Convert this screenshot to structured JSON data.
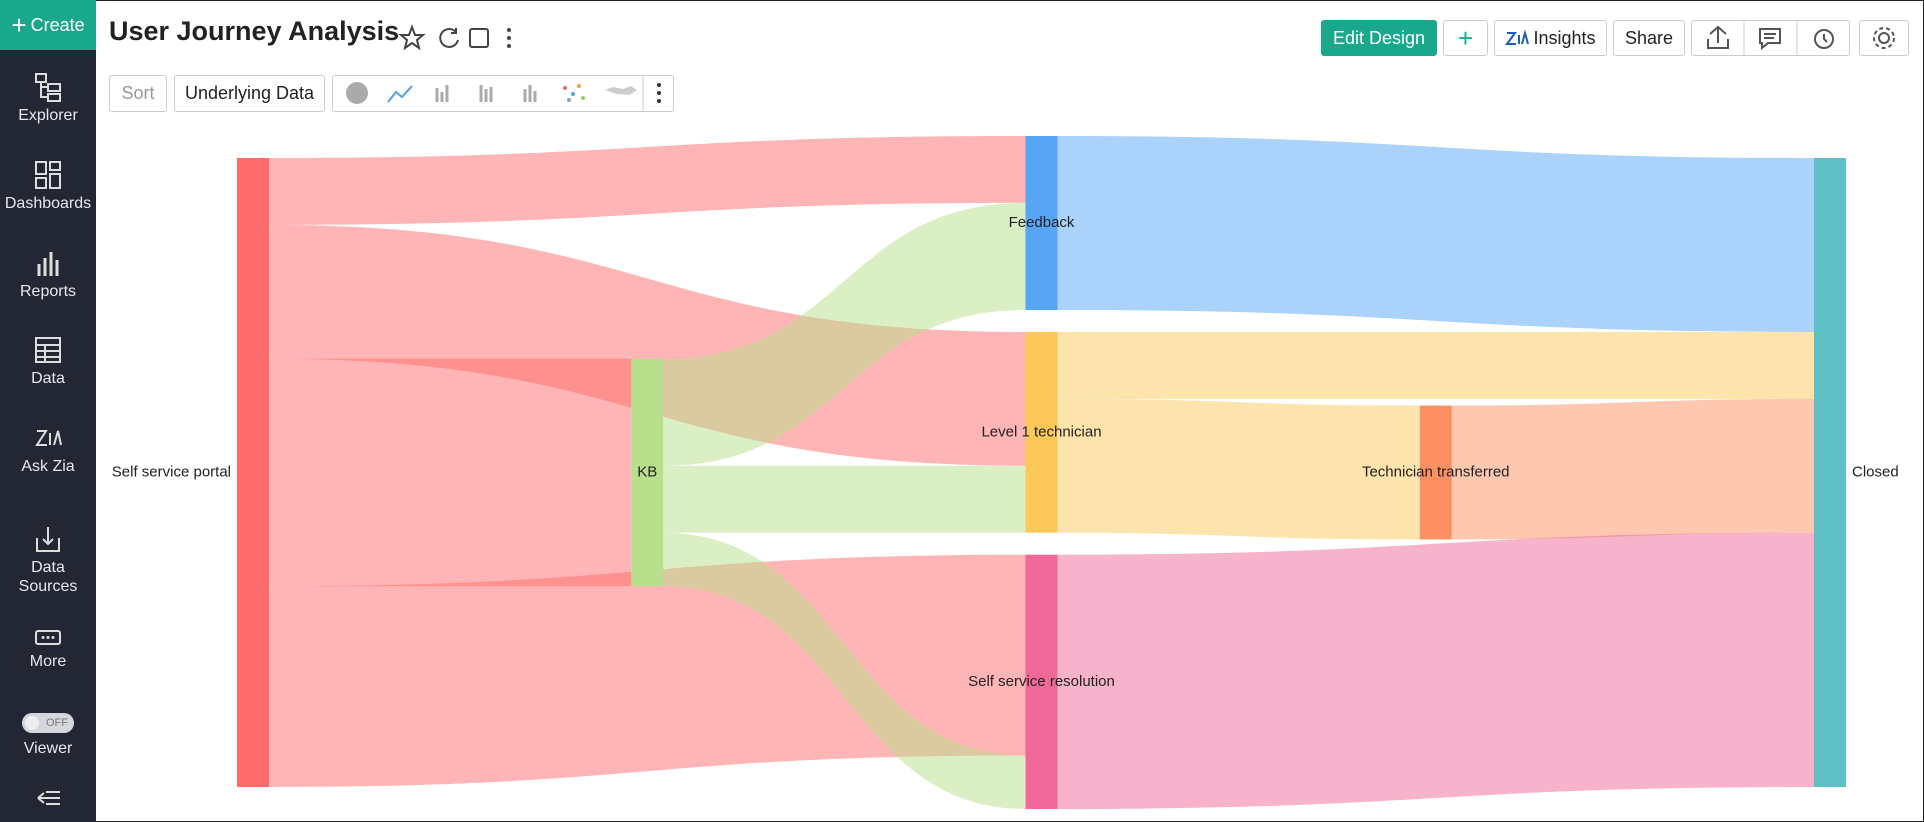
{
  "sidebar": {
    "create": "Create",
    "items": [
      "Explorer",
      "Dashboards",
      "Reports",
      "Data",
      "Ask Zia",
      "Data Sources",
      "More",
      "Viewer"
    ],
    "toggle": "OFF"
  },
  "header": {
    "title": "User Journey Analysis",
    "buttons": [
      "Edit Design",
      "Insights",
      "Share"
    ]
  },
  "toolbar": {
    "sort": "Sort",
    "underlying": "Underlying Data"
  },
  "chart_data": {
    "type": "sankey",
    "nodes": [
      "Self service portal",
      "KB",
      "Feedback",
      "Level 1 technician",
      "Self service resolution",
      "Technician transferred",
      "Closed"
    ],
    "colors": [
      "#ff6b6b",
      "#b8e08c",
      "#56a6f5",
      "#fcc85a",
      "#f06897",
      "#fc9062",
      "#5ec0c4"
    ],
    "links": [
      {
        "source": "Self service portal",
        "target": "Feedback",
        "value": 50
      },
      {
        "source": "Self service portal",
        "target": "Level 1 technician",
        "value": 100
      },
      {
        "source": "Self service portal",
        "target": "KB",
        "value": 170
      },
      {
        "source": "Self service portal",
        "target": "Self service resolution",
        "value": 150
      },
      {
        "source": "KB",
        "target": "Feedback",
        "value": 80
      },
      {
        "source": "KB",
        "target": "Level 1 technician",
        "value": 50
      },
      {
        "source": "KB",
        "target": "Self service resolution",
        "value": 40
      },
      {
        "source": "Feedback",
        "target": "Closed",
        "value": 130
      },
      {
        "source": "Level 1 technician",
        "target": "Closed",
        "value": 50
      },
      {
        "source": "Level 1 technician",
        "target": "Technician transferred",
        "value": 100
      },
      {
        "source": "Technician transferred",
        "target": "Closed",
        "value": 100
      },
      {
        "source": "Self service resolution",
        "target": "Closed",
        "value": 190
      }
    ]
  }
}
